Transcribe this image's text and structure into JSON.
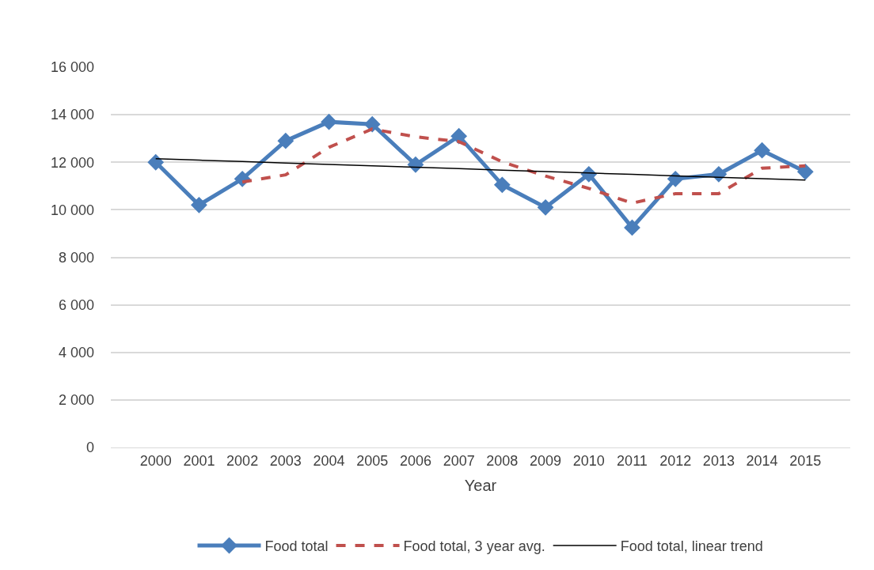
{
  "chart_data": {
    "type": "line",
    "xlabel": "Year",
    "categories": [
      "2000",
      "2001",
      "2002",
      "2003",
      "2004",
      "2005",
      "2006",
      "2007",
      "2008",
      "2009",
      "2010",
      "2011",
      "2012",
      "2013",
      "2014",
      "2015"
    ],
    "series": [
      {
        "name": "Food total",
        "color": "#4a7ebb",
        "marker": "diamond",
        "line_style": "solid",
        "values": [
          12000,
          10200,
          11300,
          12900,
          13700,
          13600,
          11900,
          13100,
          11050,
          10100,
          11500,
          9250,
          11300,
          11500,
          12500,
          11600
        ]
      },
      {
        "name": "Food total, 3 year avg.",
        "color": "#c0504d",
        "marker": "none",
        "line_style": "dashed",
        "values": [
          null,
          null,
          11170,
          11470,
          12630,
          13400,
          13070,
          12870,
          12020,
          11420,
          10900,
          10280,
          10680,
          10680,
          11750,
          11850
        ]
      },
      {
        "name": "Food total, linear trend",
        "color": "#000000",
        "marker": "none",
        "line_style": "solid",
        "values": [
          12150,
          12090,
          12030,
          11970,
          11910,
          11850,
          11790,
          11730,
          11670,
          11610,
          11550,
          11490,
          11430,
          11370,
          11310,
          11250
        ]
      }
    ],
    "ylim": [
      0,
      16000
    ],
    "yticks": [
      0,
      {
        "value": 2000,
        "label": "2 000"
      },
      {
        "value": 4000,
        "label": "4 000"
      },
      {
        "value": 6000,
        "label": "6 000"
      },
      {
        "value": 8000,
        "label": "8 000"
      },
      {
        "value": 10000,
        "label": "10 000"
      },
      {
        "value": 12000,
        "label": "12 000"
      },
      {
        "value": 14000,
        "label": "14 000"
      },
      {
        "value": 16000,
        "label": "16 000"
      }
    ],
    "grid": "y",
    "legend": "bottom"
  }
}
